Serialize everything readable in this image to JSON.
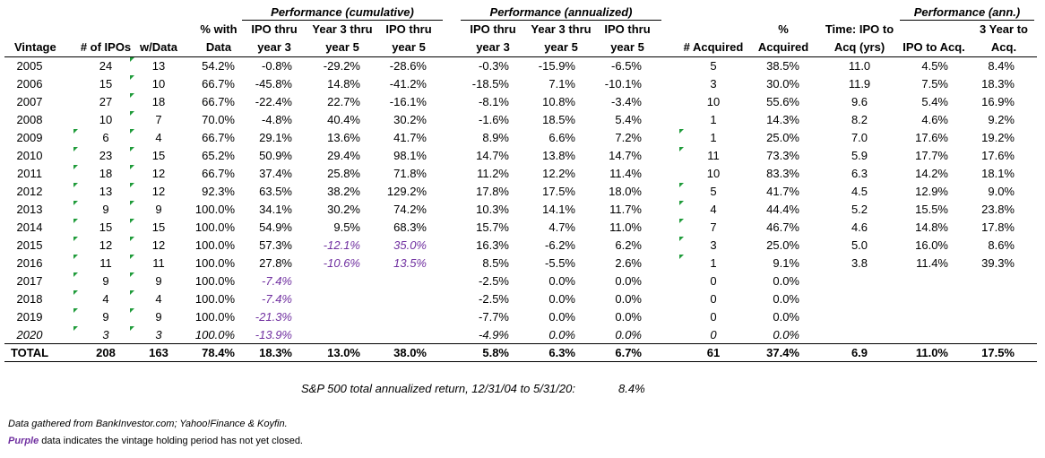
{
  "groups": {
    "cumulative": "Performance (cumulative)",
    "annualized": "Performance (annualized)",
    "ann": "Performance (ann.)"
  },
  "headers": {
    "vintage": "Vintage",
    "ipos": "# of IPOs",
    "wdata": "w/Data",
    "pct_with_1": "% with",
    "pct_with_2": "Data",
    "ipo3_1": "IPO thru",
    "ipo3_2": "year 3",
    "y35_1": "Year 3 thru",
    "y35_2": "year 5",
    "ipo5_1": "IPO thru",
    "ipo5_2": "year 5",
    "a_ipo3_1": "IPO thru",
    "a_ipo3_2": "year 3",
    "a_y35_1": "Year 3 thru",
    "a_y35_2": "year 5",
    "a_ipo5_1": "IPO thru",
    "a_ipo5_2": "year 5",
    "acquired": "# Acquired",
    "pct_acq_1": "%",
    "pct_acq_2": "Acquired",
    "time_1": "Time: IPO to",
    "time_2": "Acq (yrs)",
    "ipo_acq": "IPO to Acq.",
    "y3acq_1": "3 Year to",
    "y3acq_2": "Acq."
  },
  "rows": [
    {
      "vintage": "2005",
      "ipos": "24",
      "wdata": "13",
      "pct": "54.2%",
      "c1": "-0.8%",
      "c2": "-29.2%",
      "c3": "-28.6%",
      "a1": "-0.3%",
      "a2": "-15.9%",
      "a3": "-6.5%",
      "acq": "5",
      "pacq": "38.5%",
      "time": "11.0",
      "p1": "4.5%",
      "p2": "8.4%"
    },
    {
      "vintage": "2006",
      "ipos": "15",
      "wdata": "10",
      "pct": "66.7%",
      "c1": "-45.8%",
      "c2": "14.8%",
      "c3": "-41.2%",
      "a1": "-18.5%",
      "a2": "7.1%",
      "a3": "-10.1%",
      "acq": "3",
      "pacq": "30.0%",
      "time": "11.9",
      "p1": "7.5%",
      "p2": "18.3%"
    },
    {
      "vintage": "2007",
      "ipos": "27",
      "wdata": "18",
      "pct": "66.7%",
      "c1": "-22.4%",
      "c2": "22.7%",
      "c3": "-16.1%",
      "a1": "-8.1%",
      "a2": "10.8%",
      "a3": "-3.4%",
      "acq": "10",
      "pacq": "55.6%",
      "time": "9.6",
      "p1": "5.4%",
      "p2": "16.9%"
    },
    {
      "vintage": "2008",
      "ipos": "10",
      "wdata": "7",
      "pct": "70.0%",
      "c1": "-4.8%",
      "c2": "40.4%",
      "c3": "30.2%",
      "a1": "-1.6%",
      "a2": "18.5%",
      "a3": "5.4%",
      "acq": "1",
      "pacq": "14.3%",
      "time": "8.2",
      "p1": "4.6%",
      "p2": "9.2%"
    },
    {
      "vintage": "2009",
      "ipos": "6",
      "wdata": "4",
      "pct": "66.7%",
      "c1": "29.1%",
      "c2": "13.6%",
      "c3": "41.7%",
      "a1": "8.9%",
      "a2": "6.6%",
      "a3": "7.2%",
      "acq": "1",
      "pacq": "25.0%",
      "time": "7.0",
      "p1": "17.6%",
      "p2": "19.2%"
    },
    {
      "vintage": "2010",
      "ipos": "23",
      "wdata": "15",
      "pct": "65.2%",
      "c1": "50.9%",
      "c2": "29.4%",
      "c3": "98.1%",
      "a1": "14.7%",
      "a2": "13.8%",
      "a3": "14.7%",
      "acq": "11",
      "pacq": "73.3%",
      "time": "5.9",
      "p1": "17.7%",
      "p2": "17.6%"
    },
    {
      "vintage": "2011",
      "ipos": "18",
      "wdata": "12",
      "pct": "66.7%",
      "c1": "37.4%",
      "c2": "25.8%",
      "c3": "71.8%",
      "a1": "11.2%",
      "a2": "12.2%",
      "a3": "11.4%",
      "acq": "10",
      "pacq": "83.3%",
      "time": "6.3",
      "p1": "14.2%",
      "p2": "18.1%"
    },
    {
      "vintage": "2012",
      "ipos": "13",
      "wdata": "12",
      "pct": "92.3%",
      "c1": "63.5%",
      "c2": "38.2%",
      "c3": "129.2%",
      "a1": "17.8%",
      "a2": "17.5%",
      "a3": "18.0%",
      "acq": "5",
      "pacq": "41.7%",
      "time": "4.5",
      "p1": "12.9%",
      "p2": "9.0%"
    },
    {
      "vintage": "2013",
      "ipos": "9",
      "wdata": "9",
      "pct": "100.0%",
      "c1": "34.1%",
      "c2": "30.2%",
      "c3": "74.2%",
      "a1": "10.3%",
      "a2": "14.1%",
      "a3": "11.7%",
      "acq": "4",
      "pacq": "44.4%",
      "time": "5.2",
      "p1": "15.5%",
      "p2": "23.8%"
    },
    {
      "vintage": "2014",
      "ipos": "15",
      "wdata": "15",
      "pct": "100.0%",
      "c1": "54.9%",
      "c2": "9.5%",
      "c3": "68.3%",
      "a1": "15.7%",
      "a2": "4.7%",
      "a3": "11.0%",
      "acq": "7",
      "pacq": "46.7%",
      "time": "4.6",
      "p1": "14.8%",
      "p2": "17.8%"
    },
    {
      "vintage": "2015",
      "ipos": "12",
      "wdata": "12",
      "pct": "100.0%",
      "c1": "57.3%",
      "c2": "-12.1%",
      "c3": "35.0%",
      "a1": "16.3%",
      "a2": "-6.2%",
      "a3": "6.2%",
      "acq": "3",
      "pacq": "25.0%",
      "time": "5.0",
      "p1": "16.0%",
      "p2": "8.6%"
    },
    {
      "vintage": "2016",
      "ipos": "11",
      "wdata": "11",
      "pct": "100.0%",
      "c1": "27.8%",
      "c2": "-10.6%",
      "c3": "13.5%",
      "a1": "8.5%",
      "a2": "-5.5%",
      "a3": "2.6%",
      "acq": "1",
      "pacq": "9.1%",
      "time": "3.8",
      "p1": "11.4%",
      "p2": "39.3%"
    },
    {
      "vintage": "2017",
      "ipos": "9",
      "wdata": "9",
      "pct": "100.0%",
      "c1": "-7.4%",
      "c2": "",
      "c3": "",
      "a1": "-2.5%",
      "a2": "0.0%",
      "a3": "0.0%",
      "acq": "0",
      "pacq": "0.0%",
      "time": "",
      "p1": "",
      "p2": ""
    },
    {
      "vintage": "2018",
      "ipos": "4",
      "wdata": "4",
      "pct": "100.0%",
      "c1": "-7.4%",
      "c2": "",
      "c3": "",
      "a1": "-2.5%",
      "a2": "0.0%",
      "a3": "0.0%",
      "acq": "0",
      "pacq": "0.0%",
      "time": "",
      "p1": "",
      "p2": ""
    },
    {
      "vintage": "2019",
      "ipos": "9",
      "wdata": "9",
      "pct": "100.0%",
      "c1": "-21.3%",
      "c2": "",
      "c3": "",
      "a1": "-7.7%",
      "a2": "0.0%",
      "a3": "0.0%",
      "acq": "0",
      "pacq": "0.0%",
      "time": "",
      "p1": "",
      "p2": ""
    },
    {
      "vintage": "2020",
      "ipos": "3",
      "wdata": "3",
      "pct": "100.0%",
      "c1": "-13.9%",
      "c2": "",
      "c3": "",
      "a1": "-4.9%",
      "a2": "0.0%",
      "a3": "0.0%",
      "acq": "0",
      "pacq": "0.0%",
      "time": "",
      "p1": "",
      "p2": ""
    }
  ],
  "total": {
    "vintage": "TOTAL",
    "ipos": "208",
    "wdata": "163",
    "pct": "78.4%",
    "c1": "18.3%",
    "c2": "13.0%",
    "c3": "38.0%",
    "a1": "5.8%",
    "a2": "6.3%",
    "a3": "6.7%",
    "acq": "61",
    "pacq": "37.4%",
    "time": "6.9",
    "p1": "11.0%",
    "p2": "17.5%"
  },
  "sp500": {
    "label": "S&P 500 total annualized return, 12/31/04 to 5/31/20:",
    "value": "8.4%"
  },
  "footnotes": {
    "source": "Data gathered from BankInvestor.com; Yahoo!Finance & Koyfin.",
    "purple_word": "Purple",
    "purple_rest": " data indicates the vintage holding period has not yet closed."
  },
  "colors": {
    "purple": "#7030a0",
    "indicator_green": "#1f9b3a"
  }
}
